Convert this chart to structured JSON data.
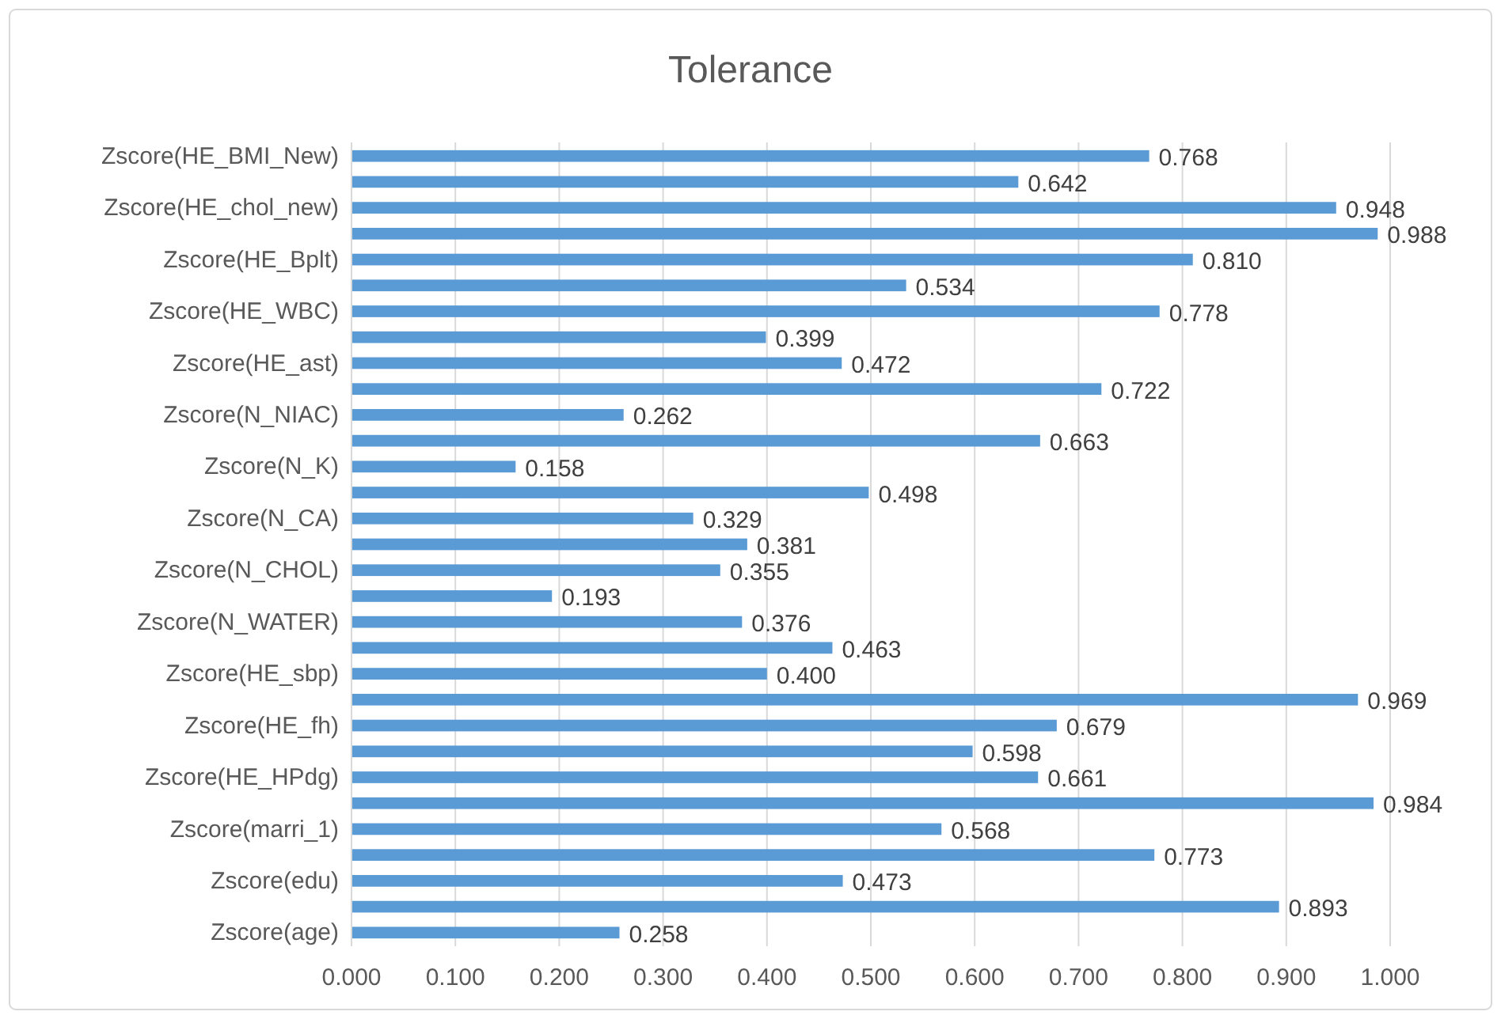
{
  "chart_data": {
    "type": "bar",
    "orientation": "horizontal",
    "title": "Tolerance",
    "categories": [
      "Zscore(HE_BMI_New)",
      null,
      "Zscore(HE_chol_new)",
      null,
      "Zscore(HE_Bplt)",
      null,
      "Zscore(HE_WBC)",
      null,
      "Zscore(HE_ast)",
      null,
      "Zscore(N_NIAC)",
      null,
      "Zscore(N_K)",
      null,
      "Zscore(N_CA)",
      null,
      "Zscore(N_CHOL)",
      null,
      "Zscore(N_WATER)",
      null,
      "Zscore(HE_sbp)",
      null,
      "Zscore(HE_fh)",
      null,
      "Zscore(HE_HPdg)",
      null,
      "Zscore(marri_1)",
      null,
      "Zscore(edu)",
      null,
      "Zscore(age)"
    ],
    "values": [
      0.768,
      0.642,
      0.948,
      0.988,
      0.81,
      0.534,
      0.778,
      0.399,
      0.472,
      0.722,
      0.262,
      0.663,
      0.158,
      0.498,
      0.329,
      0.381,
      0.355,
      0.193,
      0.376,
      0.463,
      0.4,
      0.969,
      0.679,
      0.598,
      0.661,
      0.984,
      0.568,
      0.773,
      0.473,
      0.893,
      0.258
    ],
    "value_labels": [
      "0.768",
      "0.642",
      "0.948",
      "0.988",
      "0.810",
      "0.534",
      "0.778",
      "0.399",
      "0.472",
      "0.722",
      "0.262",
      "0.663",
      "0.158",
      "0.498",
      "0.329",
      "0.381",
      "0.355",
      "0.193",
      "0.376",
      "0.463",
      "0.400",
      "0.969",
      "0.679",
      "0.598",
      "0.661",
      "0.984",
      "0.568",
      "0.773",
      "0.473",
      "0.893",
      "0.258"
    ],
    "color": "#5b9bd5",
    "xlim": [
      0,
      1
    ],
    "xticks": [
      {
        "value": 0,
        "label": "0.000"
      },
      {
        "value": 0.1,
        "label": "0.100"
      },
      {
        "value": 0.2,
        "label": "0.200"
      },
      {
        "value": 0.3,
        "label": "0.300"
      },
      {
        "value": 0.4,
        "label": "0.400"
      },
      {
        "value": 0.5,
        "label": "0.500"
      },
      {
        "value": 0.6,
        "label": "0.600"
      },
      {
        "value": 0.7,
        "label": "0.700"
      },
      {
        "value": 0.8,
        "label": "0.800"
      },
      {
        "value": 0.9,
        "label": "0.900"
      },
      {
        "value": 1,
        "label": "1.000"
      }
    ],
    "grid": "x"
  }
}
